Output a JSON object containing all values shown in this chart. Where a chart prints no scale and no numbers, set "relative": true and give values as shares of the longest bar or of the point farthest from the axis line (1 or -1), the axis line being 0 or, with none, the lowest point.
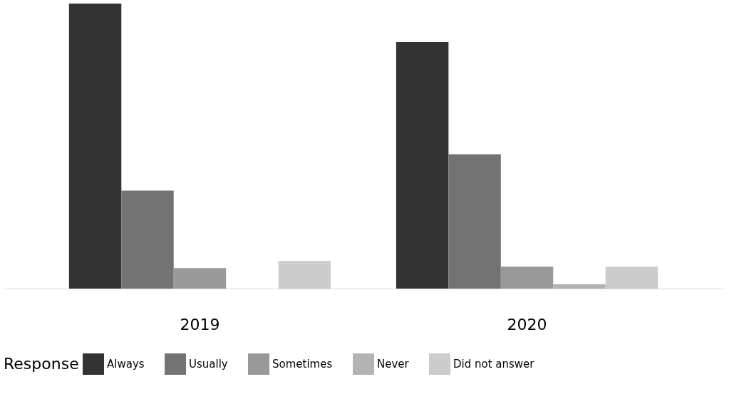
{
  "chart_data": {
    "type": "bar",
    "relative": true,
    "categories": [
      "2019",
      "2020"
    ],
    "legend_title": "Response",
    "legend": "bottom",
    "grid": false,
    "series": [
      {
        "name": "Always",
        "color": "#333333",
        "values": [
          1,
          0.865
        ]
      },
      {
        "name": "Usually",
        "color": "#737373",
        "values": [
          0.344,
          0.471
        ]
      },
      {
        "name": "Sometimes",
        "color": "#999999",
        "values": [
          0.072,
          0.077
        ]
      },
      {
        "name": "Never",
        "color": "#b3b3b3",
        "values": [
          null,
          0.015
        ]
      },
      {
        "name": "Did not answer",
        "color": "#cccccc",
        "values": [
          0.097,
          0.077
        ]
      }
    ]
  }
}
